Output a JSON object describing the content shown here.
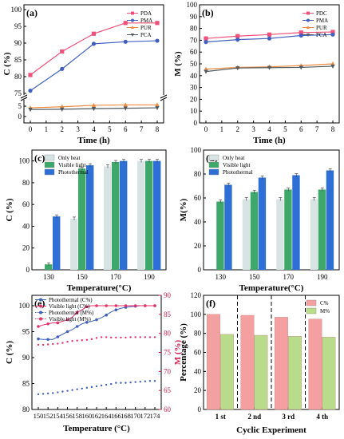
{
  "chart_data": [
    {
      "id": "a",
      "panel_label": "(a)",
      "type": "line",
      "xlabel": "Time (h)",
      "ylabel": "C (%)",
      "x": [
        0,
        2,
        4,
        6,
        8
      ],
      "x_ticks": [
        "0",
        "1",
        "2",
        "3",
        "4",
        "5",
        "6",
        "7",
        "8"
      ],
      "y_ticks": [
        "0",
        "5",
        "75",
        "80",
        "85",
        "90",
        "95",
        "100"
      ],
      "y_axis_break": true,
      "series": [
        {
          "name": "PDA",
          "color": "#f0507a",
          "marker": "square",
          "values": [
            80.5,
            87.5,
            92.8,
            96.0,
            96.0
          ]
        },
        {
          "name": "PMA",
          "color": "#4060c0",
          "marker": "circle",
          "values": [
            75.8,
            82.3,
            89.8,
            90.4,
            90.7
          ]
        },
        {
          "name": "PUR",
          "color": "#f08a40",
          "marker": "triangle",
          "values": [
            4.2,
            4.7,
            5.4,
            5.6,
            5.6
          ]
        },
        {
          "name": "PCA",
          "color": "#505a60",
          "marker": "triangle-down",
          "values": [
            3.4,
            3.5,
            3.8,
            4.0,
            4.2
          ]
        }
      ],
      "legend_position": "top-right"
    },
    {
      "id": "b",
      "panel_label": "(b)",
      "type": "line",
      "xlabel": "Time (h)",
      "ylabel": "M (%)",
      "x": [
        0,
        2,
        4,
        6,
        8
      ],
      "x_ticks": [
        "0",
        "1",
        "2",
        "3",
        "4",
        "5",
        "6",
        "7",
        "8"
      ],
      "y_ticks": [
        "0",
        "10",
        "20",
        "30",
        "40",
        "50",
        "60",
        "70",
        "80",
        "90",
        "100"
      ],
      "ylim": [
        0,
        100
      ],
      "series": [
        {
          "name": "PDC",
          "color": "#f0507a",
          "marker": "square",
          "values": [
            71.5,
            73.5,
            74.8,
            76.5,
            77.0
          ]
        },
        {
          "name": "PMA",
          "color": "#4060c0",
          "marker": "circle",
          "values": [
            68.5,
            70.5,
            71.5,
            74.0,
            74.8
          ]
        },
        {
          "name": "PUR",
          "color": "#f08a40",
          "marker": "triangle",
          "values": [
            45.5,
            47.0,
            47.5,
            48.5,
            50.0
          ]
        },
        {
          "name": "PCA",
          "color": "#505a60",
          "marker": "triangle-down",
          "values": [
            43.5,
            46.5,
            46.8,
            47.0,
            48.0
          ]
        }
      ],
      "legend_position": "top-right"
    },
    {
      "id": "c",
      "panel_label": "(c)",
      "type": "bar",
      "xlabel": "Temperature(°C)",
      "ylabel": "C (%)",
      "categories": [
        "130",
        "150",
        "170",
        "190"
      ],
      "y_ticks": [
        "0",
        "20",
        "40",
        "60",
        "80",
        "100"
      ],
      "ylim": [
        0,
        110
      ],
      "series": [
        {
          "name": "Only heat",
          "color": "#d8e4e4",
          "values": [
            0,
            47,
            95,
            100
          ]
        },
        {
          "name": "Visible light",
          "color": "#3da86a",
          "values": [
            5,
            93,
            99,
            100
          ]
        },
        {
          "name": "Photothermal",
          "color": "#2e6fd6",
          "values": [
            49,
            96,
            100,
            100
          ]
        }
      ],
      "legend_position": "top-left"
    },
    {
      "id": "d",
      "panel_label": "(d)",
      "type": "bar",
      "xlabel": "Temperature(°C)",
      "ylabel": "M(%)",
      "categories": [
        "130",
        "150",
        "170",
        "190"
      ],
      "y_ticks": [
        "0",
        "20",
        "40",
        "60",
        "80",
        "100"
      ],
      "ylim": [
        0,
        100
      ],
      "series": [
        {
          "name": "Only heat",
          "color": "#d8e4e4",
          "values": [
            0,
            59,
            59,
            59
          ]
        },
        {
          "name": "Visible light",
          "color": "#3da86a",
          "values": [
            57,
            65,
            67,
            67
          ]
        },
        {
          "name": "Photothermal",
          "color": "#2e6fd6",
          "values": [
            71,
            77,
            79,
            83
          ]
        }
      ],
      "legend_position": "top-left"
    },
    {
      "id": "e",
      "panel_label": "(e)",
      "type": "line",
      "xlabel": "Temperature (°C)",
      "ylabel": "C (%)",
      "y2label": "M (%)",
      "x": [
        150,
        151,
        152,
        153,
        154,
        155,
        156,
        157,
        158,
        159,
        160,
        161,
        162,
        163,
        164,
        165,
        166,
        167,
        168,
        169,
        170,
        171,
        172,
        173,
        174
      ],
      "x_ticks": [
        "150",
        "152",
        "154",
        "156",
        "158",
        "160",
        "162",
        "164",
        "166",
        "168",
        "170",
        "172",
        "174"
      ],
      "y_ticks": [
        "80",
        "85",
        "90",
        "95",
        "100"
      ],
      "ylim": [
        80,
        102
      ],
      "y2_ticks": [
        "60",
        "65",
        "70",
        "75",
        "80",
        "85",
        "90"
      ],
      "y2lim": [
        60,
        90
      ],
      "series": [
        {
          "name": "Photothermal (C%)",
          "color": "#4060c0",
          "marker": "circle",
          "axis": "left",
          "style": "solid",
          "values": [
            93.6,
            93.5,
            93.5,
            93.5,
            94.0,
            94.5,
            95.0,
            95.4,
            96.0,
            96.5,
            96.8,
            97.0,
            97.3,
            97.7,
            98.2,
            98.8,
            99.2,
            99.5,
            99.7,
            99.8,
            99.9,
            100.0,
            100.0,
            100.0,
            100.0
          ]
        },
        {
          "name": "Visible light (C%)",
          "color": "#e8306a",
          "marker": "circle",
          "axis": "left",
          "style": "solid",
          "values": [
            96.0,
            96.3,
            96.5,
            96.7,
            96.7,
            97.0,
            97.3,
            97.8,
            98.7,
            99.2,
            99.8,
            100.0,
            100.0,
            100.0,
            100.0,
            100.0,
            100.0,
            100.0,
            100.0,
            100.0,
            100.0,
            100.0,
            100.0,
            100.0,
            100.0
          ]
        },
        {
          "name": "Photothermal (M%)",
          "color": "#4060c0",
          "marker": "circle",
          "axis": "right",
          "style": "dotted",
          "values": [
            64.0,
            64.1,
            64.2,
            64.3,
            64.5,
            64.7,
            64.9,
            65.1,
            65.3,
            65.5,
            65.7,
            65.9,
            66.1,
            66.3,
            66.5,
            66.7,
            67.0,
            67.0,
            67.0,
            67.1,
            67.2,
            67.3,
            67.4,
            67.5,
            67.5
          ]
        },
        {
          "name": "Visible light (M%)",
          "color": "#e8306a",
          "marker": "circle",
          "axis": "right",
          "style": "dotted",
          "values": [
            77.0,
            77.0,
            77.1,
            77.2,
            77.3,
            77.5,
            77.8,
            78.0,
            78.1,
            78.2,
            78.3,
            78.5,
            78.8,
            79.0,
            79.0,
            78.9,
            78.9,
            78.9,
            78.9,
            79.0,
            79.0,
            79.0,
            79.0,
            79.0,
            79.0
          ]
        }
      ],
      "legend_position": "top-left"
    },
    {
      "id": "f",
      "panel_label": "(f)",
      "type": "bar",
      "xlabel": "Cyclic Experiment",
      "ylabel": "Percentage (%)",
      "categories": [
        "1 st",
        "2 nd",
        "3 rd",
        "4 th"
      ],
      "y_ticks": [
        "0",
        "20",
        "40",
        "60",
        "80",
        "100",
        "120"
      ],
      "ylim": [
        0,
        120
      ],
      "series": [
        {
          "name": "C%",
          "color": "#f4a0a0",
          "values": [
            100,
            99,
            97,
            95
          ]
        },
        {
          "name": "M%",
          "color": "#b8dc8a",
          "values": [
            79,
            78,
            77,
            76
          ]
        }
      ],
      "separators": "dashed",
      "legend_position": "top-right"
    }
  ]
}
